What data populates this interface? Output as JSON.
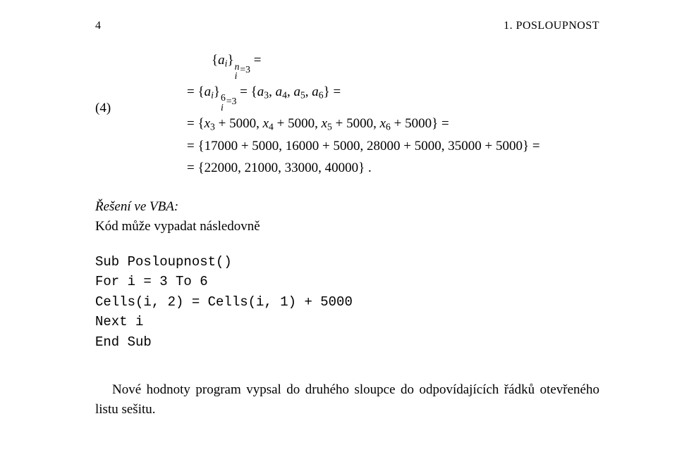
{
  "header": {
    "page_number": "4",
    "chapter_title": "1. POSLOUPNOST"
  },
  "equation": {
    "number_label": "(4)",
    "line1_a": "{",
    "line1_var": "a",
    "line1_sub": "i",
    "line1_b": "}",
    "line1_sup": "n",
    "line1_subidx": "i=3",
    "line1_eq": " =",
    "line2": "= {aᵢ}⁶ᵢ₌₃ = {a₃, a₄, a₅, a₆} =",
    "line3": "= {x₃ + 5000, x₄ + 5000, x₅ + 5000, x₆ + 5000} =",
    "line4": "= {17000 + 5000, 16000 + 5000, 28000 + 5000, 35000 + 5000} =",
    "line5": "= {22000, 21000, 33000, 40000} ."
  },
  "solution": {
    "label": "Řešení ve VBA:",
    "text": "Kód může vypadat následovně"
  },
  "code": {
    "l1": "Sub Posloupnost()",
    "l2": "For i = 3 To 6",
    "l3": "Cells(i, 2) = Cells(i, 1) + 5000",
    "l4": "Next i",
    "l5": "End Sub"
  },
  "footnote": {
    "text": "Nové hodnoty program vypsal do druhého sloupce do odpovídajících řádků otevřeného listu sešitu."
  }
}
